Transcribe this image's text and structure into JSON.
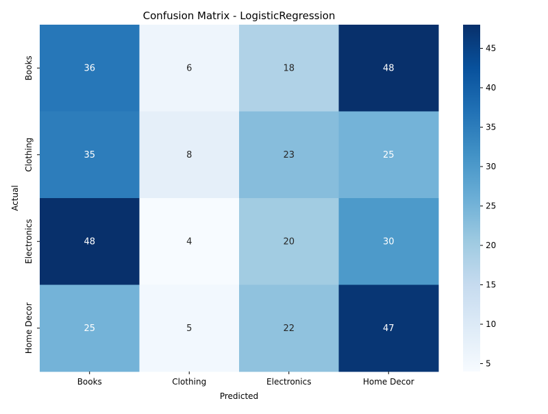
{
  "chart_data": {
    "type": "heatmap",
    "title": "Confusion Matrix - LogisticRegression",
    "xlabel": "Predicted",
    "ylabel": "Actual",
    "x_categories": [
      "Books",
      "Clothing",
      "Electronics",
      "Home Decor"
    ],
    "y_categories": [
      "Books",
      "Clothing",
      "Electronics",
      "Home Decor"
    ],
    "values": [
      [
        36,
        6,
        18,
        48
      ],
      [
        35,
        8,
        23,
        25
      ],
      [
        48,
        4,
        20,
        30
      ],
      [
        25,
        5,
        22,
        47
      ]
    ],
    "colormap": "Blues",
    "color_range": [
      4,
      48
    ],
    "colorbar_ticks": [
      5,
      10,
      15,
      20,
      25,
      30,
      35,
      40,
      45
    ]
  }
}
